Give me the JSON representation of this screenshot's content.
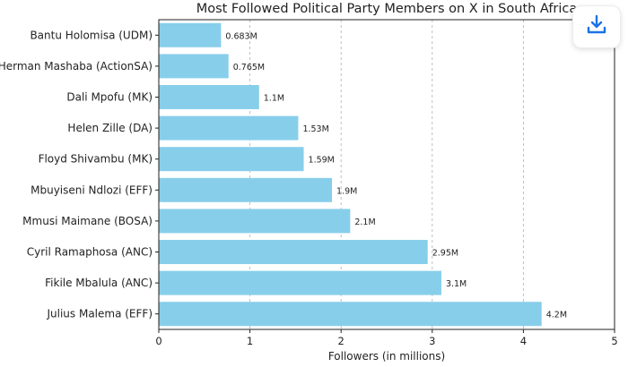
{
  "chart_data": {
    "type": "bar",
    "orientation": "horizontal",
    "title": "Most Followed Political Party Members on X in South Africa",
    "xlabel": "Followers (in millions)",
    "ylabel": "",
    "xlim": [
      0,
      5
    ],
    "xticks": [
      "0",
      "1",
      "2",
      "3",
      "4",
      "5"
    ],
    "grid": true,
    "bar_color": "#87CEEB",
    "categories": [
      "Bantu Holomisa (UDM)",
      "Herman Mashaba (ActionSA)",
      "Dali Mpofu (MK)",
      "Helen Zille (DA)",
      "Floyd Shivambu (MK)",
      "Mbuyiseni Ndlozi (EFF)",
      "Mmusi Maimane (BOSA)",
      "Cyril Ramaphosa (ANC)",
      "Fikile Mbalula (ANC)",
      "Julius Malema (EFF)"
    ],
    "values": [
      0.683,
      0.765,
      1.1,
      1.53,
      1.59,
      1.9,
      2.1,
      2.95,
      3.1,
      4.2
    ],
    "value_labels": [
      "0.683M",
      "0.765M",
      "1.1M",
      "1.53M",
      "1.59M",
      "1.9M",
      "2.1M",
      "2.95M",
      "3.1M",
      "4.2M"
    ]
  },
  "toolbar": {
    "download_icon": "download-icon"
  }
}
